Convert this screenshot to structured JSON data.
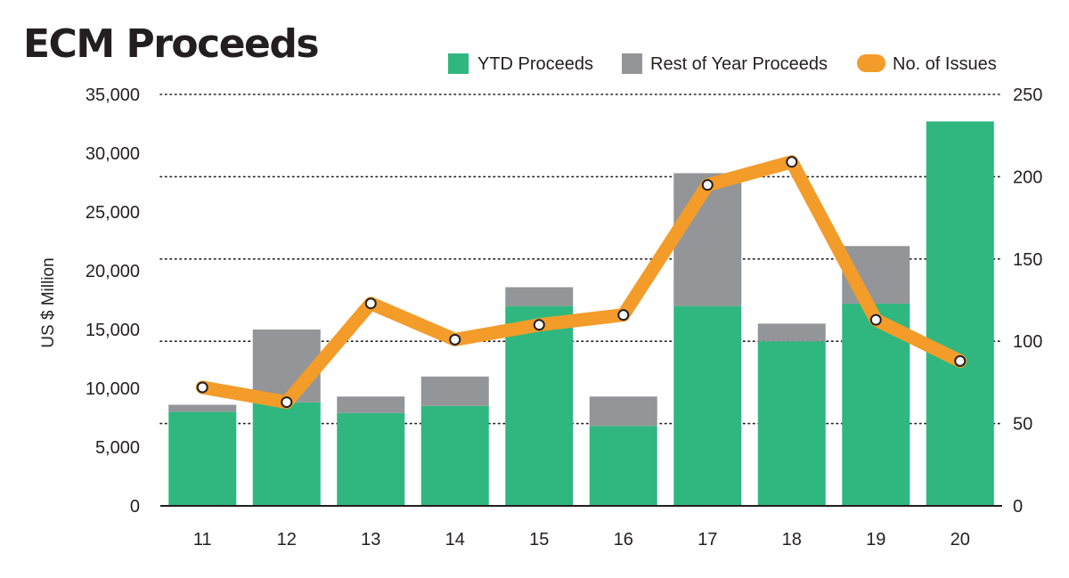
{
  "chart_data": {
    "type": "bar+line",
    "title": "ECM Proceeds",
    "categories": [
      "11",
      "12",
      "13",
      "14",
      "15",
      "16",
      "17",
      "18",
      "19",
      "20"
    ],
    "series": [
      {
        "name": "YTD Proceeds",
        "kind": "stacked-bar",
        "axis": "left",
        "values": [
          8000,
          8800,
          7900,
          8500,
          17000,
          6800,
          17000,
          14000,
          17200,
          32700
        ]
      },
      {
        "name": "Rest of Year Proceeds",
        "kind": "stacked-bar",
        "axis": "left",
        "values": [
          600,
          6200,
          1400,
          2500,
          1600,
          2500,
          11300,
          1500,
          4900,
          0
        ]
      },
      {
        "name": "No. of Issues",
        "kind": "line",
        "axis": "right",
        "values": [
          72,
          63,
          123,
          101,
          110,
          116,
          195,
          209,
          113,
          88
        ]
      }
    ],
    "ylabel": "US $ Million",
    "ylim": [
      0,
      35000
    ],
    "yticks": [
      0,
      5000,
      10000,
      15000,
      20000,
      25000,
      30000,
      35000
    ],
    "ytick_labels": [
      "0",
      "5,000",
      "10,000",
      "15,000",
      "20,000",
      "25,000",
      "30,000",
      "35,000"
    ],
    "y2lim": [
      0,
      250
    ],
    "y2ticks": [
      0,
      50,
      100,
      150,
      200,
      250
    ],
    "y2tick_labels": [
      "0",
      "50",
      "100",
      "150",
      "200",
      "250"
    ],
    "grid": "dotted horizontal",
    "legend": {
      "placement": "top-right",
      "items": [
        "YTD Proceeds",
        "Rest of Year Proceeds",
        "No. of Issues"
      ]
    },
    "colors": {
      "ytd": "#2fb77f",
      "rest": "#939598",
      "issues_line": "#f39c2a",
      "marker_fill": "#ffffff",
      "marker_stroke": "#231f20",
      "text": "#231f20"
    }
  }
}
